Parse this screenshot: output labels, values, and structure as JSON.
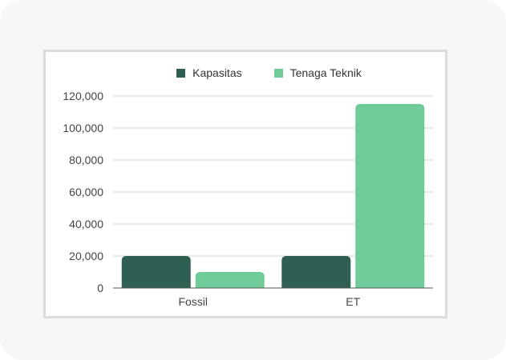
{
  "chart_data": {
    "type": "bar",
    "categories": [
      "Fossil",
      "ET"
    ],
    "series": [
      {
        "name": "Kapasitas",
        "color": "#2f5f52",
        "values": [
          20000,
          20000
        ]
      },
      {
        "name": "Tenaga Teknik",
        "color": "#6fcb9a",
        "values": [
          10000,
          115000
        ]
      }
    ],
    "ylim": [
      0,
      120000
    ],
    "yticks": [
      "0",
      "20,000",
      "40,000",
      "60,000",
      "80,000",
      "100,000",
      "120,000"
    ],
    "ytick_values": [
      0,
      20000,
      40000,
      60000,
      80000,
      100000,
      120000
    ],
    "grid": true,
    "legend_position": "top"
  }
}
